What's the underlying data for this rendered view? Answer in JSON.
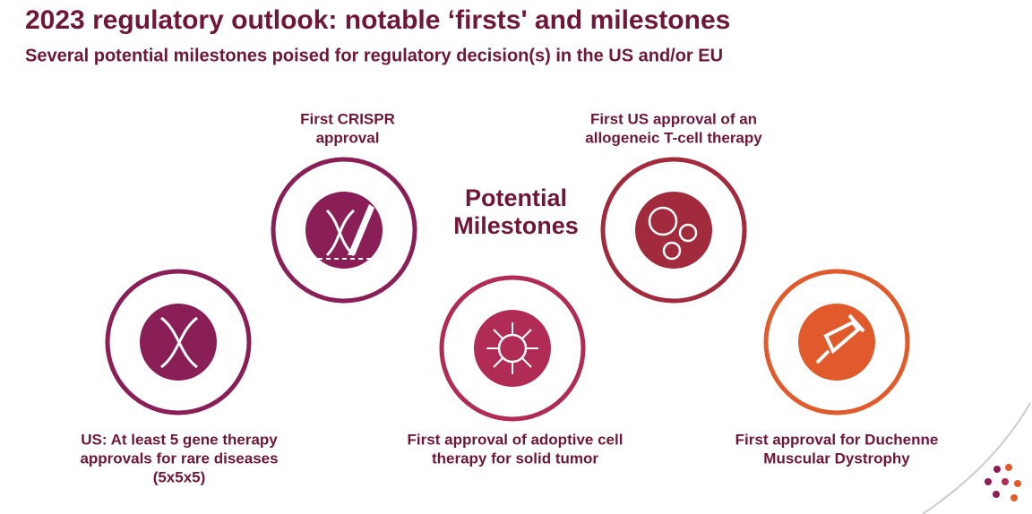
{
  "header": {
    "title": "2023 regulatory outlook: notable ‘firsts' and milestones",
    "subtitle": "Several potential milestones poised for regulatory decision(s) in the US and/or EU"
  },
  "center_label": [
    "Potential",
    "Milestones"
  ],
  "milestones": [
    {
      "label": [
        "US: At least 5 gene therapy",
        "approvals for rare diseases",
        "(5x5x5)"
      ]
    },
    {
      "label": [
        "First CRISPR",
        "approval"
      ]
    },
    {
      "label": [
        "First approval of adoptive cell",
        "therapy for solid tumor"
      ]
    },
    {
      "label": [
        "First US approval of an",
        "allogeneic T-cell therapy"
      ]
    },
    {
      "label": [
        "First approval for Duchenne",
        "Muscular Dystrophy"
      ]
    }
  ]
}
